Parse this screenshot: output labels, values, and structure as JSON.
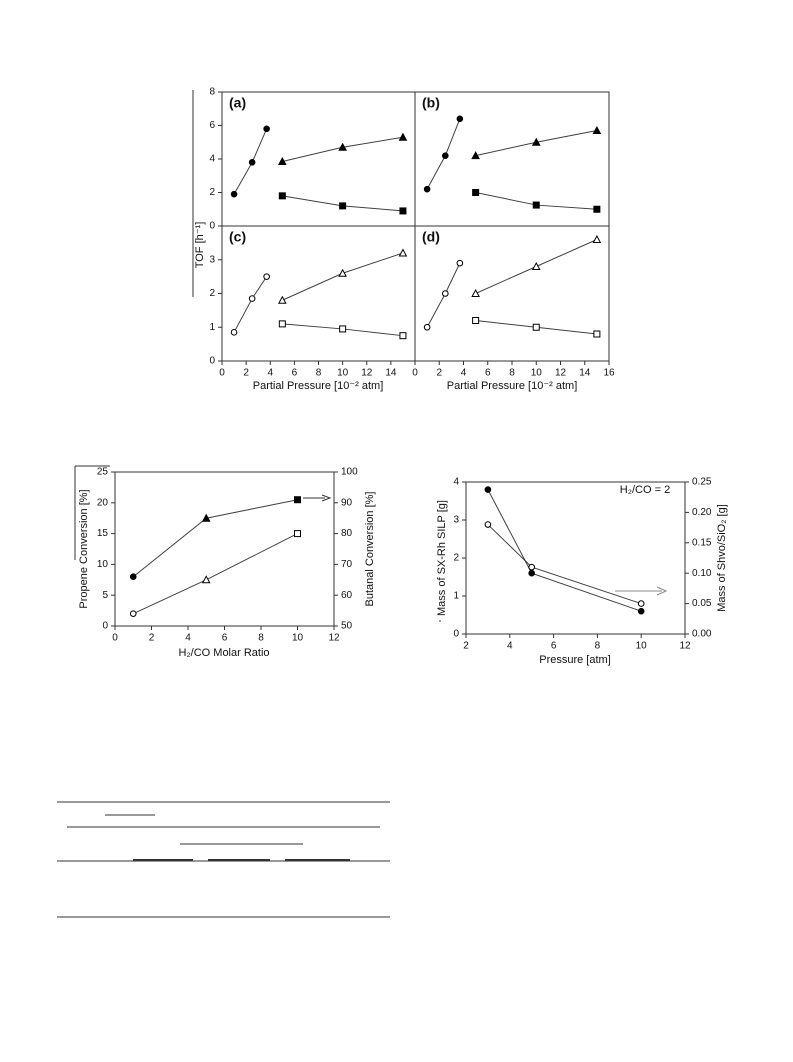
{
  "chart_data": [
    {
      "type": "line",
      "panel": "(a)",
      "y_label": "TOF [h⁻¹]",
      "xlim": [
        0,
        16
      ],
      "ylim": [
        0,
        8
      ],
      "yticks": [
        0,
        2,
        4,
        6,
        8
      ],
      "series": [
        {
          "color": "#000000",
          "marker": "circle",
          "filled": true,
          "x": [
            1,
            2.5,
            3.7
          ],
          "values": [
            1.9,
            3.8,
            5.8
          ]
        },
        {
          "color": "#000000",
          "marker": "triangle",
          "filled": true,
          "x": [
            5,
            10,
            15
          ],
          "values": [
            3.85,
            4.7,
            5.3
          ]
        },
        {
          "color": "#000000",
          "marker": "square",
          "filled": true,
          "x": [
            5,
            10,
            15
          ],
          "values": [
            1.8,
            1.2,
            0.9
          ]
        }
      ]
    },
    {
      "type": "line",
      "panel": "(b)",
      "xlim": [
        0,
        16
      ],
      "ylim": [
        0,
        8
      ],
      "series": [
        {
          "color": "#000000",
          "marker": "circle",
          "filled": true,
          "x": [
            1,
            2.5,
            3.7
          ],
          "values": [
            2.2,
            4.2,
            6.4
          ]
        },
        {
          "color": "#000000",
          "marker": "triangle",
          "filled": true,
          "x": [
            5,
            10,
            15
          ],
          "values": [
            4.2,
            5.0,
            5.7
          ]
        },
        {
          "color": "#000000",
          "marker": "square",
          "filled": true,
          "x": [
            5,
            10,
            15
          ],
          "values": [
            2.0,
            1.25,
            1.0
          ]
        }
      ]
    },
    {
      "type": "line",
      "panel": "(c)",
      "x_label": "Partial Pressure [10⁻² atm]",
      "xlim": [
        0,
        16
      ],
      "xticks": [
        0,
        2,
        4,
        6,
        8,
        10,
        12,
        14
      ],
      "ylim": [
        0,
        4
      ],
      "yticks": [
        0,
        1,
        2,
        3
      ],
      "series": [
        {
          "color": "#000000",
          "marker": "circle",
          "filled": false,
          "x": [
            1,
            2.5,
            3.7
          ],
          "values": [
            0.85,
            1.85,
            2.5
          ]
        },
        {
          "color": "#000000",
          "marker": "triangle",
          "filled": false,
          "x": [
            5,
            10,
            15
          ],
          "values": [
            1.8,
            2.6,
            3.2
          ]
        },
        {
          "color": "#000000",
          "marker": "square",
          "filled": false,
          "x": [
            5,
            10,
            15
          ],
          "values": [
            1.1,
            0.95,
            0.75
          ]
        }
      ]
    },
    {
      "type": "line",
      "panel": "(d)",
      "x_label": "Partial Pressure [10⁻² atm]",
      "xlim": [
        0,
        16
      ],
      "xticks": [
        0,
        2,
        4,
        6,
        8,
        10,
        12,
        14,
        16
      ],
      "ylim": [
        0,
        4
      ],
      "series": [
        {
          "color": "#000000",
          "marker": "circle",
          "filled": false,
          "x": [
            1,
            2.5,
            3.7
          ],
          "values": [
            1.0,
            2.0,
            2.9
          ]
        },
        {
          "color": "#000000",
          "marker": "triangle",
          "filled": false,
          "x": [
            5,
            10,
            15
          ],
          "values": [
            2.0,
            2.8,
            3.6
          ]
        },
        {
          "color": "#000000",
          "marker": "square",
          "filled": false,
          "x": [
            5,
            10,
            15
          ],
          "values": [
            1.2,
            1.0,
            0.8
          ]
        }
      ]
    },
    {
      "type": "line",
      "x_label": "H₂/CO Molar Ratio",
      "y_label": "Propene Conversion [%]",
      "y2_label": "Butanal Conversion [%]",
      "xlim": [
        0,
        12
      ],
      "xticks": [
        0,
        2,
        4,
        6,
        8,
        10,
        12
      ],
      "ylim": [
        0,
        25
      ],
      "yticks": [
        0,
        5,
        10,
        15,
        20,
        25
      ],
      "y2lim": [
        50,
        100
      ],
      "y2ticks": [
        50,
        60,
        70,
        80,
        90,
        100
      ],
      "series": [
        {
          "color": "#000000",
          "markers": [
            "circle",
            "triangle",
            "square"
          ],
          "filled": true,
          "axis": "y2",
          "x": [
            1,
            5,
            10
          ],
          "values": [
            66,
            85,
            91
          ]
        },
        {
          "color": "#000000",
          "markers": [
            "circle",
            "triangle",
            "square"
          ],
          "filled": false,
          "x": [
            1,
            5,
            10
          ],
          "values": [
            2,
            7.5,
            15
          ]
        }
      ]
    },
    {
      "type": "line",
      "x_label": "Pressure [atm]",
      "y_label": "Mass of SX-Rh SILP [g]",
      "y2_label": "Mass of Shvo/SiO₂ [g]",
      "annotation": "H₂/CO = 2",
      "xlim": [
        2,
        12
      ],
      "xticks": [
        2,
        4,
        6,
        8,
        10,
        12
      ],
      "ylim": [
        0,
        4
      ],
      "yticks": [
        0,
        1,
        2,
        3,
        4
      ],
      "y2lim": [
        0,
        0.25
      ],
      "y2ticks": [
        {
          "value": 0,
          "label": "0.00"
        },
        {
          "value": 0.05,
          "label": "0.05"
        },
        {
          "value": 0.1,
          "label": "0.10"
        },
        {
          "value": 0.15,
          "label": "0.15"
        },
        {
          "value": 0.2,
          "label": "0.20"
        },
        {
          "value": 0.25,
          "label": "0.25"
        }
      ],
      "series": [
        {
          "color": "#000000",
          "marker": "circle",
          "filled": true,
          "x": [
            3,
            5,
            10
          ],
          "values": [
            3.8,
            1.6,
            0.6
          ]
        },
        {
          "color": "#000000",
          "marker": "circle",
          "filled": false,
          "axis": "y2",
          "x": [
            3,
            5,
            10
          ],
          "values": [
            0.18,
            0.11,
            0.05
          ]
        }
      ]
    }
  ]
}
